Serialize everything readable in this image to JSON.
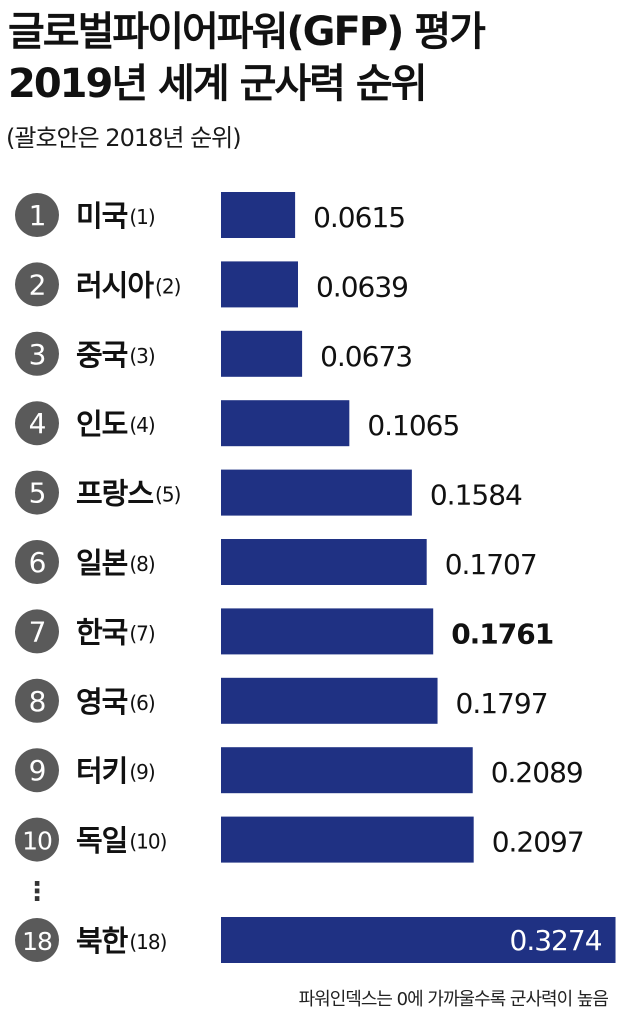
{
  "title_lines": [
    "글로벌파이어파워(GFP) 평가",
    "2019년 세계 군사력 순위"
  ],
  "subtitle": "(괄호안은 2018년 순위)",
  "footnote": "파워인덱스는 0에 가까울수록 군사력이 높음",
  "colors": {
    "bar": "#1f3183",
    "badge": "#5a5a5a",
    "badge_text": "#ffffff",
    "highlight_label": "#ffffff"
  },
  "chart_data": {
    "type": "bar",
    "orientation": "horizontal",
    "title": "글로벌파이어파워(GFP) 평가 2019년 세계 군사력 순위",
    "subtitle": "(괄호안은 2018년 순위)",
    "xlabel": "",
    "ylabel": "",
    "grid": false,
    "legend": "none",
    "value_axis_shown": false,
    "rows": [
      {
        "rank": "1",
        "country": "미국",
        "prev_rank": "(1)",
        "value": 0.0615,
        "label": "0.0615"
      },
      {
        "rank": "2",
        "country": "러시아",
        "prev_rank": "(2)",
        "value": 0.0639,
        "label": "0.0639"
      },
      {
        "rank": "3",
        "country": "중국",
        "prev_rank": "(3)",
        "value": 0.0673,
        "label": "0.0673"
      },
      {
        "rank": "4",
        "country": "인도",
        "prev_rank": "(4)",
        "value": 0.1065,
        "label": "0.1065"
      },
      {
        "rank": "5",
        "country": "프랑스",
        "prev_rank": "(5)",
        "value": 0.1584,
        "label": "0.1584"
      },
      {
        "rank": "6",
        "country": "일본",
        "prev_rank": "(8)",
        "value": 0.1707,
        "label": "0.1707"
      },
      {
        "rank": "7",
        "country": "한국",
        "prev_rank": "(7)",
        "value": 0.1761,
        "label": "0.1761",
        "highlight": true
      },
      {
        "rank": "8",
        "country": "영국",
        "prev_rank": "(6)",
        "value": 0.1797,
        "label": "0.1797"
      },
      {
        "rank": "9",
        "country": "터키",
        "prev_rank": "(9)",
        "value": 0.2089,
        "label": "0.2089"
      },
      {
        "rank": "10",
        "country": "독일",
        "prev_rank": "(10)",
        "value": 0.2097,
        "label": "0.2097"
      },
      {
        "rank": "18",
        "country": "북한",
        "prev_rank": "(18)",
        "value": 0.3274,
        "label": "0.3274",
        "label_inside": true
      }
    ],
    "ellipsis": "⋮"
  }
}
